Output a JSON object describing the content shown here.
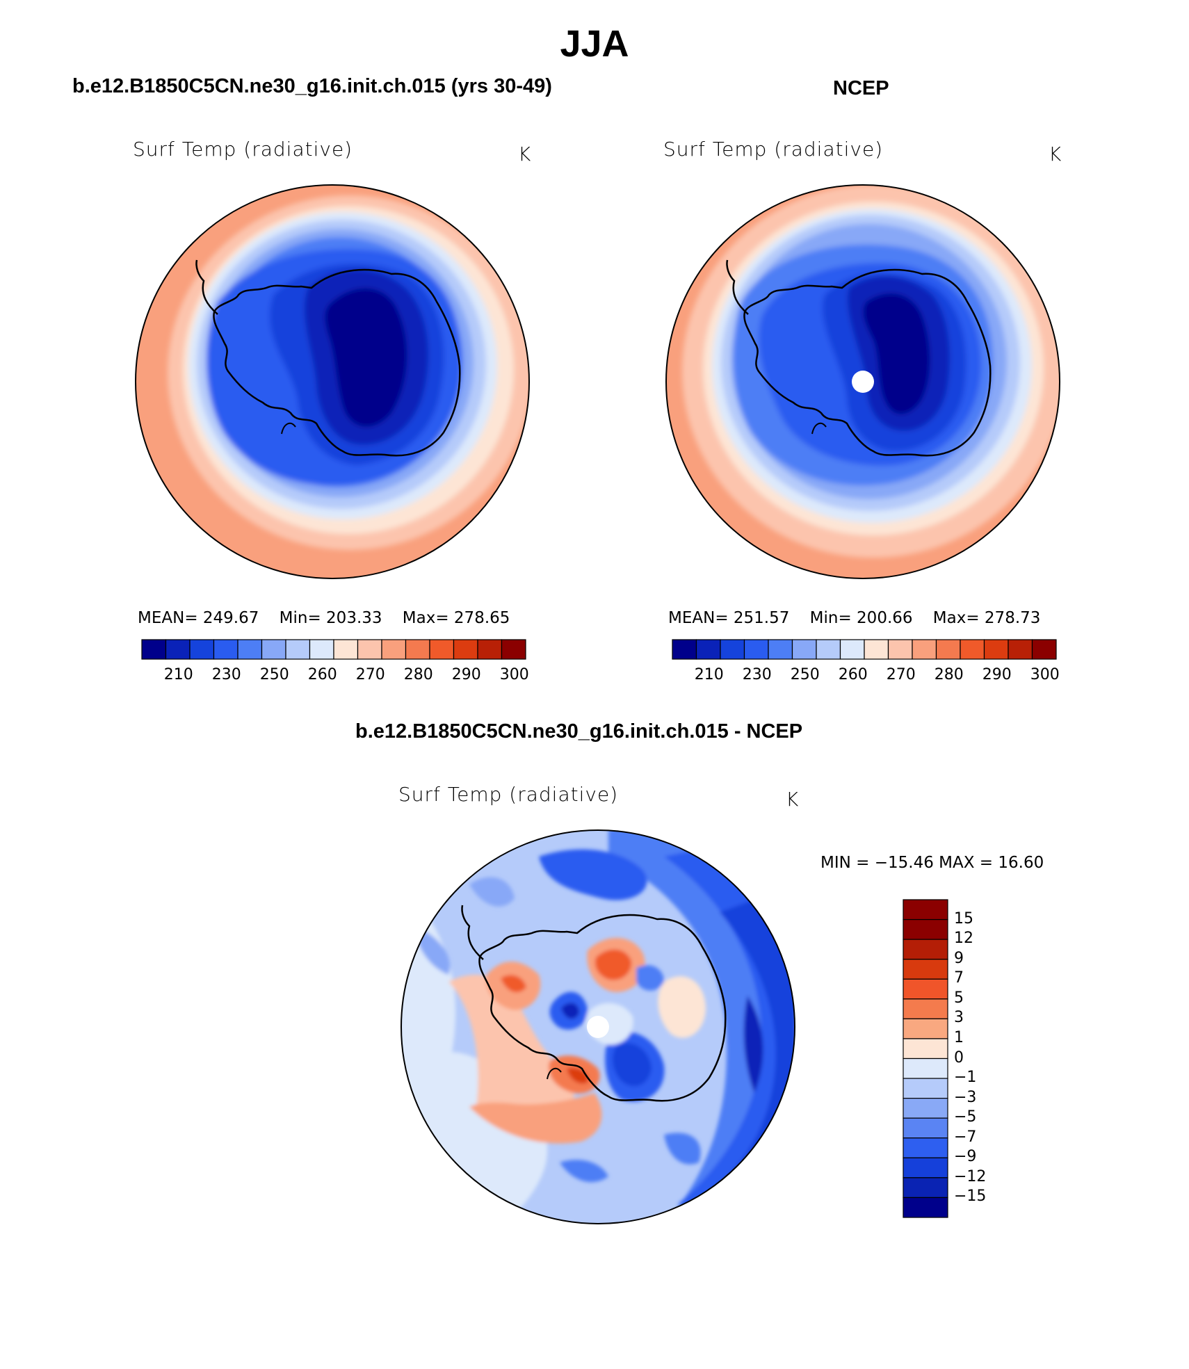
{
  "figure": {
    "title": "JJA",
    "region": "Southern Hemisphere polar stereographic (Antarctica)"
  },
  "panels": {
    "model": {
      "case_title": "b.e12.B1850C5CN.ne30_g16.init.ch.015 (yrs 30-49)",
      "field_label": "Surf Temp (radiative)",
      "units": "K",
      "stats": {
        "mean_label": "MEAN=",
        "mean": "249.67",
        "min_label": "Min=",
        "min": "203.33",
        "max_label": "Max=",
        "max": "278.65"
      }
    },
    "obs": {
      "case_title": "NCEP",
      "field_label": "Surf Temp (radiative)",
      "units": "K",
      "stats": {
        "mean_label": "MEAN=",
        "mean": "251.57",
        "min_label": "Min=",
        "min": "200.66",
        "max_label": "Max=",
        "max": "278.73"
      }
    },
    "diff": {
      "case_title": "b.e12.B1850C5CN.ne30_g16.init.ch.015 - NCEP",
      "field_label": "Surf Temp (radiative)",
      "units": "K",
      "minmax_text": "MIN = −15.46 MAX =  16.60"
    }
  },
  "colorbar_abs": {
    "colors": [
      "#00008b",
      "#0a22b8",
      "#1543dc",
      "#2a5cf0",
      "#4d7ef5",
      "#88a8f7",
      "#b5cbfa",
      "#dde9fb",
      "#fde5d5",
      "#fcc4ad",
      "#f9a07d",
      "#f47a4f",
      "#f05a2a",
      "#dc3c10",
      "#b82006",
      "#8b0000"
    ],
    "tick_labels": [
      "210",
      "230",
      "250",
      "260",
      "270",
      "280",
      "290",
      "300"
    ]
  },
  "colorbar_diff": {
    "colors_top_to_bottom": [
      "#8b0000",
      "#b41e06",
      "#d83a0e",
      "#f0552a",
      "#f47b4d",
      "#f9a880",
      "#fde5d5",
      "#dde9fb",
      "#b5cbfa",
      "#89a9f6",
      "#5a84f3",
      "#2e5ff0",
      "#1540da",
      "#0a23b3",
      "#00008b"
    ],
    "tick_labels": [
      "15",
      "12",
      "9",
      "7",
      "5",
      "3",
      "1",
      "0",
      "−1",
      "−3",
      "−5",
      "−7",
      "−9",
      "−12",
      "−15"
    ]
  },
  "colors": {
    "coast": "#000000",
    "missing_pole": "#ffffff"
  }
}
